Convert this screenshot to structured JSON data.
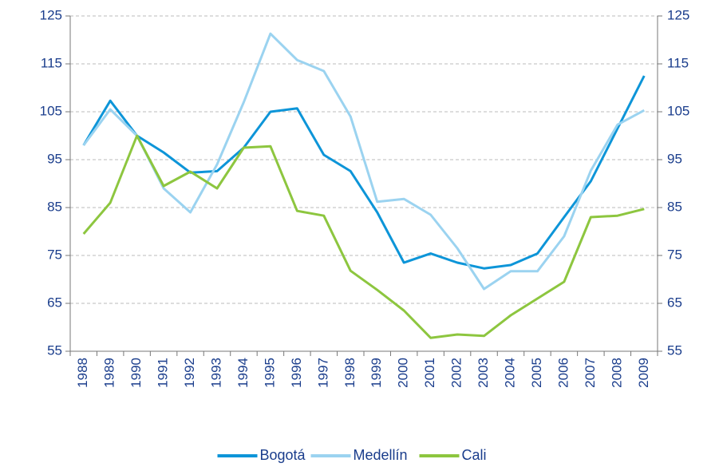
{
  "chart_data": {
    "type": "line",
    "categories": [
      "1988",
      "1989",
      "1990",
      "1991",
      "1992",
      "1993",
      "1994",
      "1995",
      "1996",
      "1997",
      "1998",
      "1999",
      "2000",
      "2001",
      "2002",
      "2003",
      "2004",
      "2005",
      "2006",
      "2007",
      "2008",
      "2009"
    ],
    "series": [
      {
        "name": "Bogotá",
        "color": "#0d95d8",
        "values": [
          98,
          107.3,
          100,
          96.5,
          92.3,
          92.6,
          97.5,
          105,
          105.7,
          96,
          92.6,
          84,
          73.5,
          75.4,
          73.5,
          72.3,
          73,
          75.4,
          83,
          90.5,
          101.5,
          112.5
        ]
      },
      {
        "name": "Medellín",
        "color": "#9bd3f0",
        "values": [
          98,
          105.5,
          100,
          89,
          84,
          94,
          107,
          121.3,
          115.8,
          113.5,
          104,
          86.2,
          86.8,
          83.5,
          76.5,
          68,
          71.7,
          71.7,
          79,
          92.7,
          102.3,
          105.3
        ]
      },
      {
        "name": "Cali",
        "color": "#8dc63f",
        "values": [
          79.5,
          86,
          100,
          89.5,
          92.5,
          89,
          97.5,
          97.8,
          84.3,
          83.3,
          71.8,
          67.8,
          63.5,
          57.8,
          58.5,
          58.2,
          62.5,
          66,
          69.5,
          83,
          83.3,
          84.7
        ]
      }
    ],
    "ylim": [
      55,
      125
    ],
    "yticks": [
      55,
      65,
      75,
      85,
      95,
      105,
      115,
      125
    ],
    "y2lim": [
      55,
      125
    ],
    "y2ticks": [
      55,
      65,
      75,
      85,
      95,
      105,
      115,
      125
    ],
    "grid": true,
    "legend": "bottom"
  }
}
